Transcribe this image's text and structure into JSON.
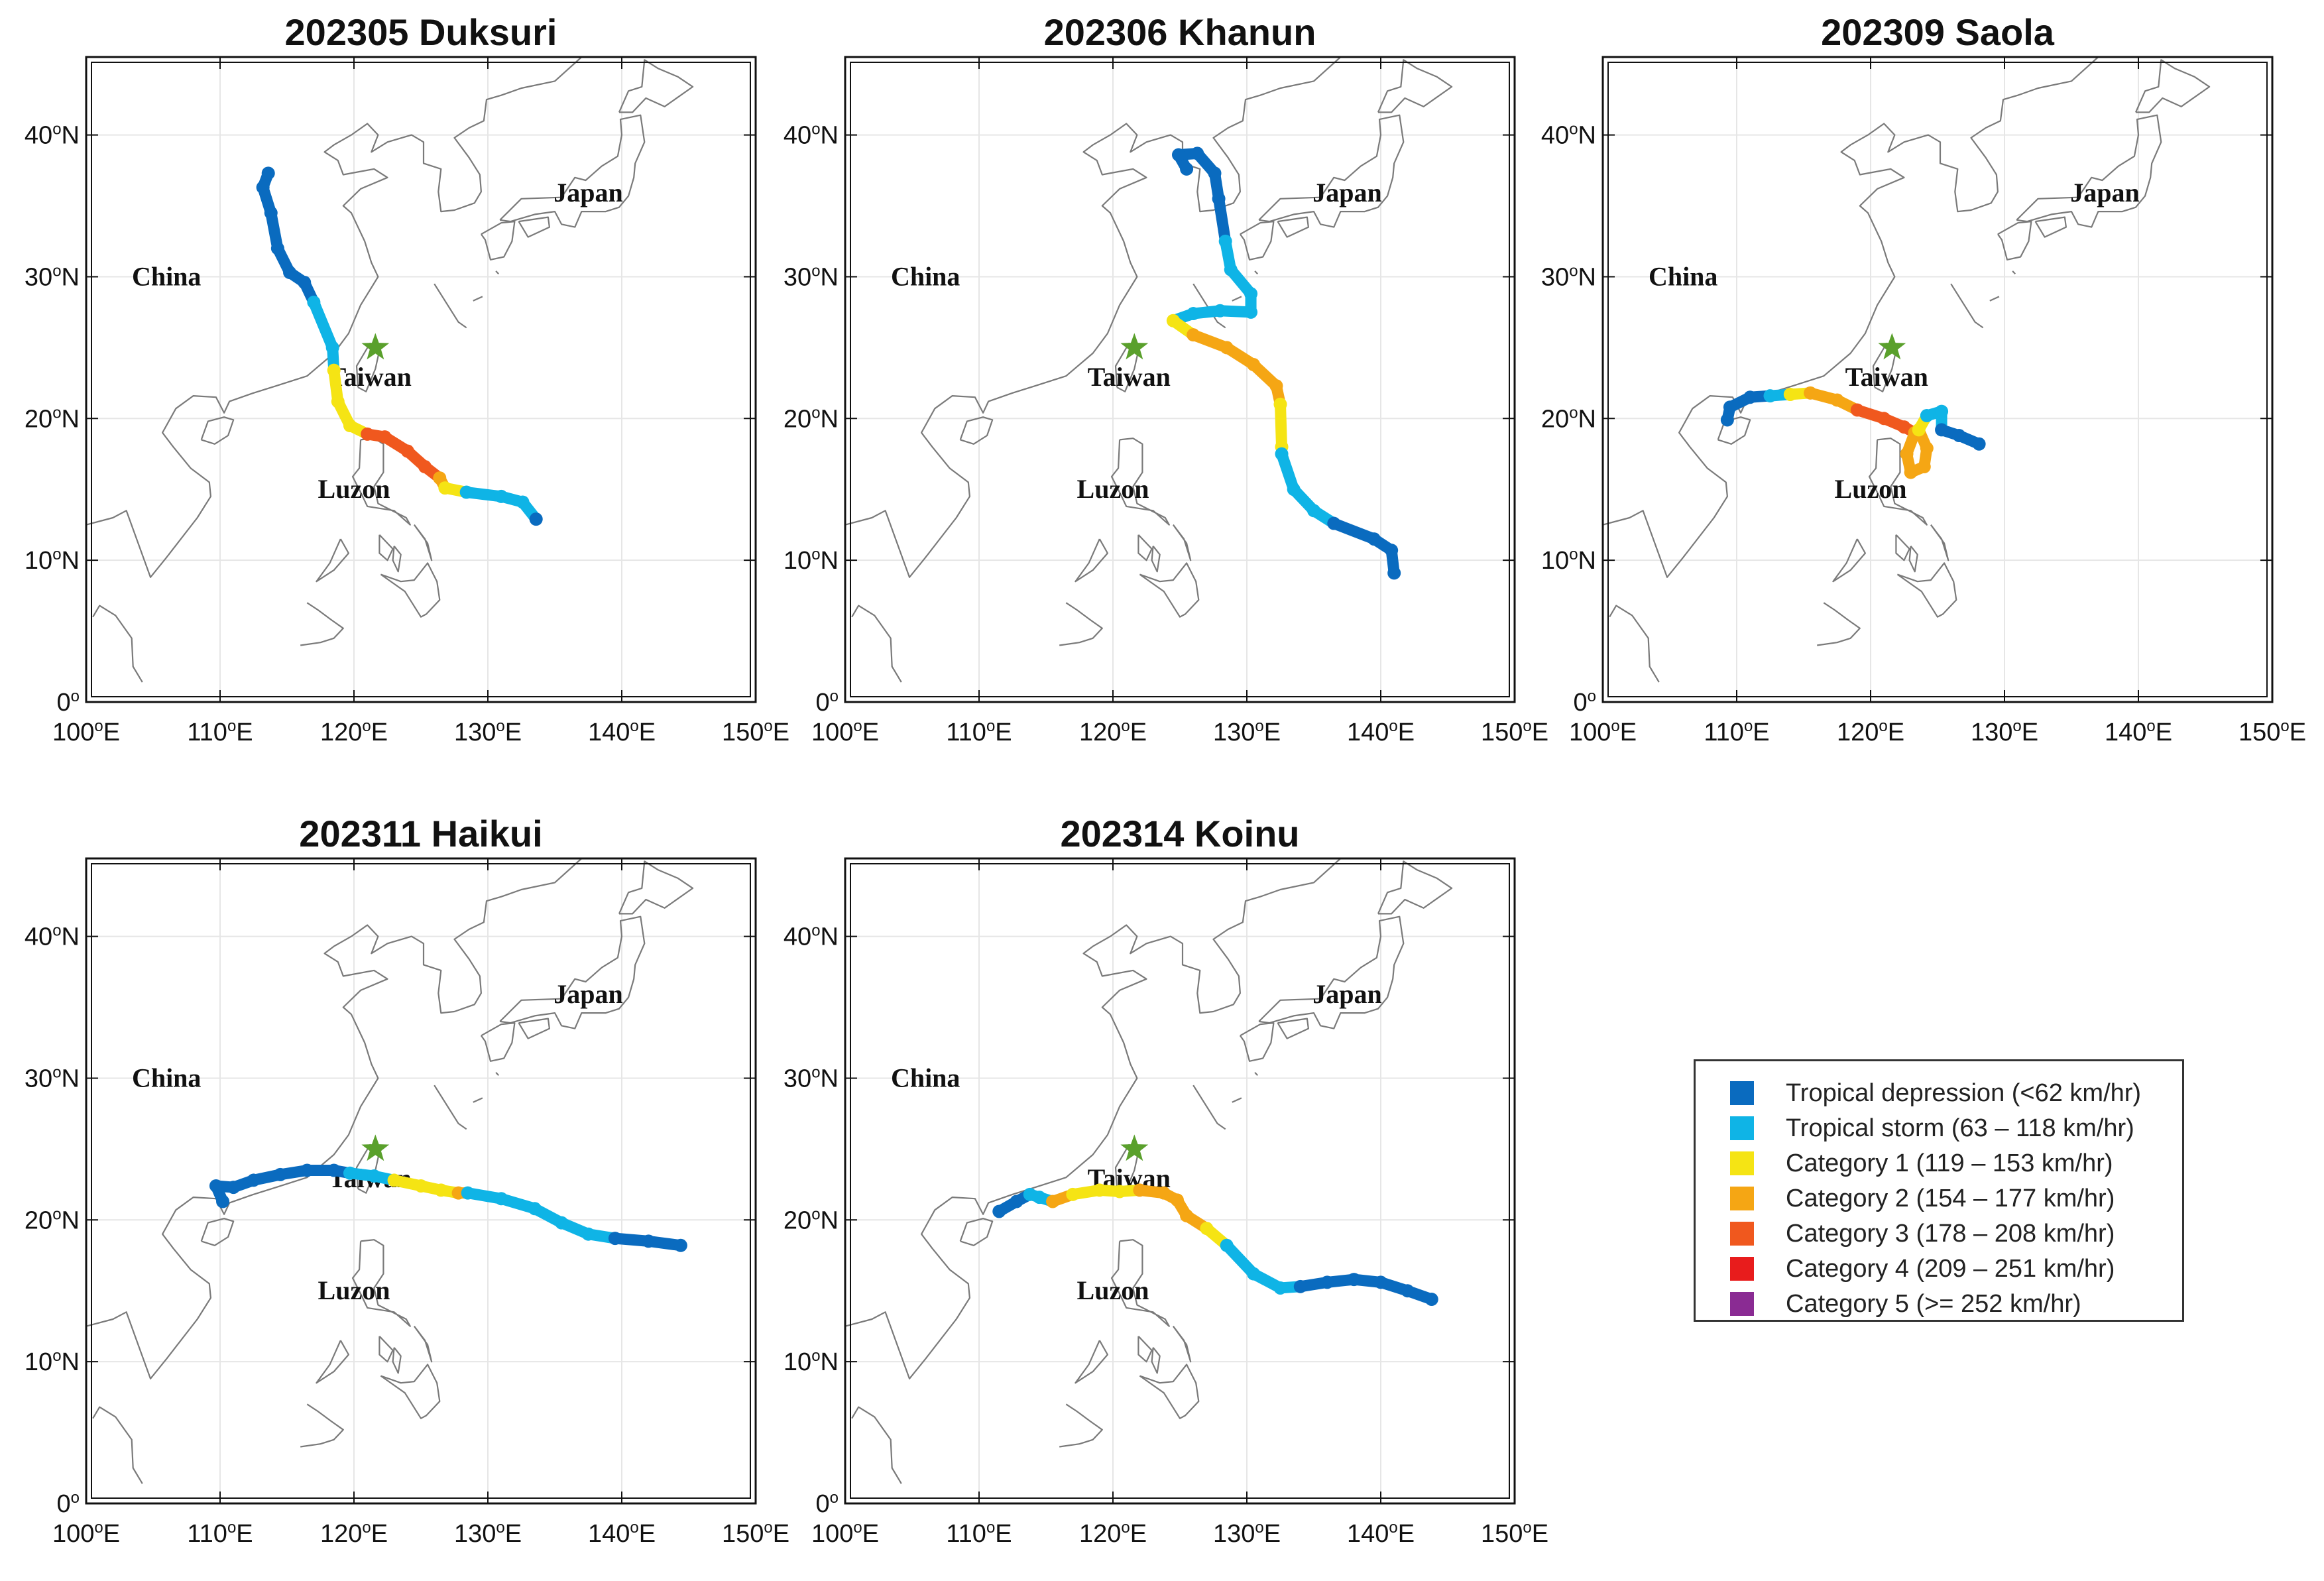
{
  "colors": {
    "td": "#0a6bbf",
    "ts": "#0fb4e6",
    "c1": "#f5e414",
    "c2": "#f5a614",
    "c3": "#f0581e",
    "c4": "#e81c1c",
    "c5": "#8a2b93",
    "star": "#5aa02c",
    "land": "#7a7a7a",
    "grid": "#e6e6e6"
  },
  "axes": {
    "lon_ticks": [
      "100",
      "110",
      "120",
      "130",
      "140",
      "150"
    ],
    "lat_ticks": [
      "0",
      "10",
      "20",
      "30",
      "40"
    ],
    "lon_suffix": "E",
    "lat_suffix": "N",
    "degree": "o"
  },
  "place_labels": {
    "china": "China",
    "taiwan": "Taiwan",
    "luzon": "Luzon",
    "japan": "Japan"
  },
  "station": {
    "name": "Taiwan station",
    "lon": 121.6,
    "lat": 25.0
  },
  "panels": [
    {
      "title": "202305 Duksuri",
      "track": [
        [
          113.6,
          37.3,
          "td"
        ],
        [
          113.2,
          36.3,
          "td"
        ],
        [
          113.8,
          34.5,
          "td"
        ],
        [
          114.3,
          32.0,
          "td"
        ],
        [
          115.2,
          30.3,
          "td"
        ],
        [
          116.3,
          29.6,
          "td"
        ],
        [
          117.0,
          28.2,
          "ts"
        ],
        [
          118.4,
          25.0,
          "ts"
        ],
        [
          118.5,
          23.4,
          "c1"
        ],
        [
          118.8,
          21.2,
          "c1"
        ],
        [
          119.7,
          19.5,
          "c1"
        ],
        [
          121.0,
          18.9,
          "c3"
        ],
        [
          122.3,
          18.7,
          "c3"
        ],
        [
          124.0,
          17.7,
          "c3"
        ],
        [
          125.3,
          16.6,
          "c3"
        ],
        [
          126.4,
          15.8,
          "c2"
        ],
        [
          126.8,
          15.1,
          "c1"
        ],
        [
          128.4,
          14.8,
          "ts"
        ],
        [
          131.0,
          14.5,
          "ts"
        ],
        [
          132.6,
          14.1,
          "ts"
        ],
        [
          133.6,
          12.9,
          "td"
        ]
      ]
    },
    {
      "title": "202306 Khanun",
      "track": [
        [
          125.5,
          37.6,
          "td"
        ],
        [
          124.9,
          38.6,
          "td"
        ],
        [
          126.3,
          38.7,
          "td"
        ],
        [
          127.6,
          37.3,
          "td"
        ],
        [
          127.9,
          35.5,
          "td"
        ],
        [
          128.4,
          32.5,
          "ts"
        ],
        [
          128.8,
          30.5,
          "ts"
        ],
        [
          130.3,
          28.8,
          "ts"
        ],
        [
          130.3,
          27.5,
          "ts"
        ],
        [
          128.0,
          27.6,
          "ts"
        ],
        [
          126.0,
          27.4,
          "ts"
        ],
        [
          124.5,
          26.9,
          "c1"
        ],
        [
          126.0,
          25.9,
          "c2"
        ],
        [
          128.5,
          25.0,
          "c2"
        ],
        [
          130.5,
          23.8,
          "c2"
        ],
        [
          132.2,
          22.3,
          "c2"
        ],
        [
          132.5,
          21.0,
          "c1"
        ],
        [
          132.6,
          18.0,
          "c1"
        ],
        [
          132.6,
          17.5,
          "ts"
        ],
        [
          133.5,
          15.0,
          "ts"
        ],
        [
          135.0,
          13.5,
          "ts"
        ],
        [
          136.5,
          12.6,
          "td"
        ],
        [
          139.5,
          11.5,
          "td"
        ],
        [
          140.8,
          10.7,
          "td"
        ],
        [
          141.0,
          9.1,
          "td"
        ]
      ]
    },
    {
      "title": "202309 Saola",
      "track": [
        [
          109.3,
          19.9,
          "td"
        ],
        [
          109.5,
          20.8,
          "td"
        ],
        [
          111.0,
          21.5,
          "td"
        ],
        [
          112.5,
          21.6,
          "ts"
        ],
        [
          114.0,
          21.7,
          "c1"
        ],
        [
          115.5,
          21.8,
          "c2"
        ],
        [
          117.5,
          21.3,
          "c2"
        ],
        [
          119.0,
          20.6,
          "c3"
        ],
        [
          121.0,
          20.0,
          "c3"
        ],
        [
          122.5,
          19.4,
          "c3"
        ],
        [
          123.3,
          19.0,
          "c2"
        ],
        [
          122.7,
          17.5,
          "c2"
        ],
        [
          123.0,
          16.2,
          "c2"
        ],
        [
          124.0,
          16.6,
          "c2"
        ],
        [
          124.2,
          17.9,
          "c2"
        ],
        [
          123.6,
          19.2,
          "c1"
        ],
        [
          124.2,
          20.2,
          "ts"
        ],
        [
          125.3,
          20.5,
          "ts"
        ],
        [
          125.3,
          19.2,
          "td"
        ],
        [
          126.6,
          18.8,
          "td"
        ],
        [
          128.1,
          18.2,
          "td"
        ]
      ]
    },
    {
      "title": "202311 Haikui",
      "track": [
        [
          110.2,
          21.3,
          "td"
        ],
        [
          109.7,
          22.4,
          "td"
        ],
        [
          111.0,
          22.3,
          "td"
        ],
        [
          112.5,
          22.8,
          "td"
        ],
        [
          114.5,
          23.2,
          "td"
        ],
        [
          116.5,
          23.5,
          "td"
        ],
        [
          118.5,
          23.5,
          "td"
        ],
        [
          119.7,
          23.3,
          "ts"
        ],
        [
          121.5,
          23.1,
          "ts"
        ],
        [
          123.0,
          22.8,
          "c1"
        ],
        [
          125.0,
          22.4,
          "c1"
        ],
        [
          126.5,
          22.1,
          "c1"
        ],
        [
          127.8,
          21.9,
          "c2"
        ],
        [
          128.5,
          21.9,
          "ts"
        ],
        [
          131.0,
          21.5,
          "ts"
        ],
        [
          133.5,
          20.8,
          "ts"
        ],
        [
          135.5,
          19.8,
          "ts"
        ],
        [
          137.5,
          19.0,
          "ts"
        ],
        [
          139.5,
          18.7,
          "td"
        ],
        [
          142.0,
          18.5,
          "td"
        ],
        [
          144.4,
          18.2,
          "td"
        ]
      ]
    },
    {
      "title": "202314 Koinu",
      "track": [
        [
          111.5,
          20.6,
          "td"
        ],
        [
          112.8,
          21.3,
          "td"
        ],
        [
          113.8,
          21.8,
          "ts"
        ],
        [
          114.5,
          21.6,
          "ts"
        ],
        [
          115.5,
          21.3,
          "c2"
        ],
        [
          117.0,
          21.8,
          "c1"
        ],
        [
          119.0,
          22.1,
          "c1"
        ],
        [
          120.5,
          22.0,
          "c1"
        ],
        [
          122.0,
          22.1,
          "c2"
        ],
        [
          123.8,
          21.9,
          "c2"
        ],
        [
          124.8,
          21.4,
          "c2"
        ],
        [
          125.5,
          20.3,
          "c2"
        ],
        [
          127.0,
          19.4,
          "c1"
        ],
        [
          128.5,
          18.2,
          "ts"
        ],
        [
          130.5,
          16.2,
          "ts"
        ],
        [
          132.5,
          15.2,
          "ts"
        ],
        [
          134.0,
          15.3,
          "td"
        ],
        [
          136.0,
          15.6,
          "td"
        ],
        [
          138.0,
          15.8,
          "td"
        ],
        [
          140.0,
          15.6,
          "td"
        ],
        [
          142.0,
          15.0,
          "td"
        ],
        [
          143.8,
          14.4,
          "td"
        ]
      ]
    }
  ],
  "legend": [
    {
      "key": "td",
      "label": "Tropical depression (<62 km/hr)"
    },
    {
      "key": "ts",
      "label": "Tropical storm (63 – 118 km/hr)"
    },
    {
      "key": "c1",
      "label": "Category 1 (119 – 153 km/hr)"
    },
    {
      "key": "c2",
      "label": "Category 2 (154 – 177 km/hr)"
    },
    {
      "key": "c3",
      "label": "Category 3 (178 – 208 km/hr)"
    },
    {
      "key": "c4",
      "label": "Category 4 (209 – 251 km/hr)"
    },
    {
      "key": "c5",
      "label": "Category 5 (>= 252 km/hr)"
    }
  ]
}
